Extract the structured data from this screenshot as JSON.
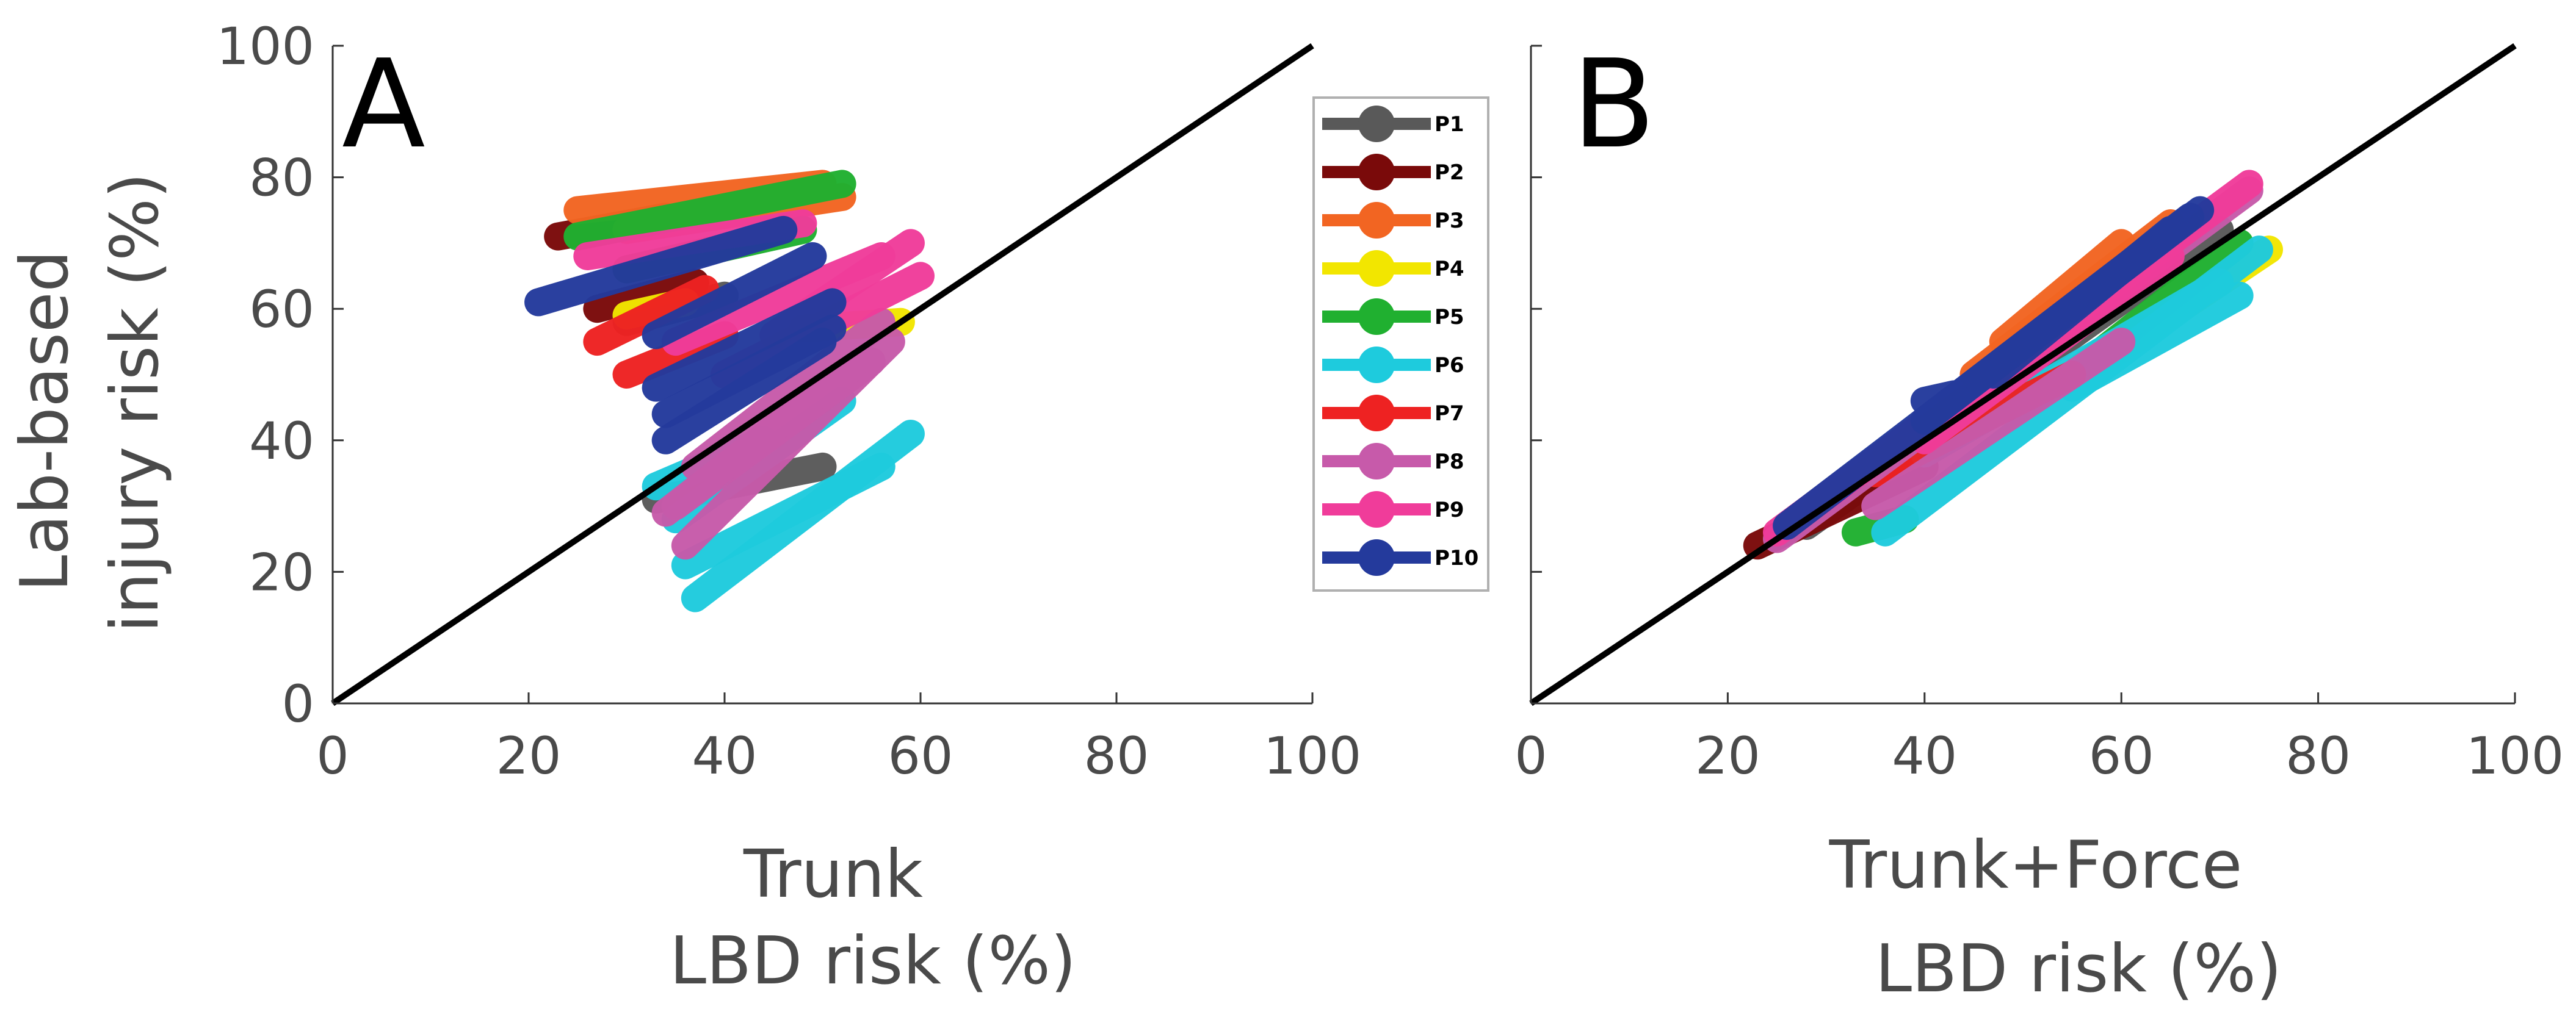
{
  "figure": {
    "ylabel_line1": "Lab-based",
    "ylabel_line2": "injury risk (%)"
  },
  "legend": {
    "entries": [
      {
        "label": "P1",
        "color": "#595959"
      },
      {
        "label": "P2",
        "color": "#7a0a0a"
      },
      {
        "label": "P3",
        "color": "#f26522"
      },
      {
        "label": "P4",
        "color": "#f2e600"
      },
      {
        "label": "P5",
        "color": "#20b030"
      },
      {
        "label": "P6",
        "color": "#1ecbdd"
      },
      {
        "label": "P7",
        "color": "#ee2222"
      },
      {
        "label": "P8",
        "color": "#c75aaa"
      },
      {
        "label": "P9",
        "color": "#f03c9a"
      },
      {
        "label": "P10",
        "color": "#243a9c"
      }
    ]
  },
  "chart_data": [
    {
      "type": "scatter",
      "panel": "A",
      "xlabel_line1": "Trunk",
      "xlabel_line2": "LBD risk (%)",
      "ylabel": "Lab-based injury risk (%)",
      "xlim": [
        0,
        100
      ],
      "ylim": [
        0,
        100
      ],
      "xticks": [
        "0",
        "20",
        "40",
        "80",
        "100"
      ],
      "xtick_values": [
        0,
        20,
        40,
        80,
        100
      ],
      "xticks_extra": [
        {
          "value": 60,
          "label": "60"
        }
      ],
      "yticks": [
        "0",
        "20",
        "40",
        "60",
        "80",
        "100"
      ],
      "ytick_values": [
        0,
        20,
        40,
        60,
        80,
        100
      ],
      "identity_line": [
        [
          0,
          0
        ],
        [
          100,
          100
        ]
      ],
      "series": [
        {
          "name": "P1",
          "color": "#595959",
          "bands": [
            [
              33,
              31,
              50,
              36
            ],
            [
              30,
              58,
              40,
              62
            ]
          ]
        },
        {
          "name": "P2",
          "color": "#7a0a0a",
          "bands": [
            [
              23,
              71,
              34,
              74
            ],
            [
              27,
              60,
              37,
              64
            ]
          ]
        },
        {
          "name": "P3",
          "color": "#f26522",
          "bands": [
            [
              25,
              75,
              50,
              79
            ],
            [
              30,
              72,
              52,
              77
            ]
          ]
        },
        {
          "name": "P4",
          "color": "#f2e600",
          "bands": [
            [
              48,
              57,
              58,
              58
            ],
            [
              30,
              59,
              36,
              61
            ]
          ]
        },
        {
          "name": "P5",
          "color": "#20b030",
          "bands": [
            [
              25,
              71,
              52,
              79
            ],
            [
              30,
              66,
              48,
              72
            ]
          ]
        },
        {
          "name": "P6",
          "color": "#1ecbdd",
          "bands": [
            [
              37,
              16,
              59,
              41
            ],
            [
              36,
              21,
              56,
              36
            ],
            [
              35,
              28,
              52,
              46
            ],
            [
              33,
              33,
              44,
              40
            ]
          ]
        },
        {
          "name": "P7",
          "color": "#ee2222",
          "bands": [
            [
              27,
              55,
              38,
              63
            ],
            [
              30,
              50,
              40,
              56
            ]
          ]
        },
        {
          "name": "P8",
          "color": "#c75aaa",
          "bands": [
            [
              36,
              24,
              57,
              55
            ],
            [
              35,
              30,
              55,
              52
            ],
            [
              37,
              36,
              56,
              58
            ],
            [
              34,
              29,
              53,
              51
            ]
          ]
        },
        {
          "name": "P9",
          "color": "#f03c9a",
          "bands": [
            [
              40,
              50,
              60,
              65
            ],
            [
              45,
              56,
              59,
              70
            ],
            [
              26,
              68,
              48,
              73
            ],
            [
              35,
              55,
              56,
              68
            ]
          ]
        },
        {
          "name": "P10",
          "color": "#243a9c",
          "bands": [
            [
              21,
              61,
              46,
              72
            ],
            [
              33,
              48,
              51,
              61
            ],
            [
              34,
              44,
              51,
              57
            ],
            [
              34,
              40,
              50,
              55
            ],
            [
              33,
              56,
              49,
              68
            ]
          ]
        }
      ]
    },
    {
      "type": "scatter",
      "panel": "B",
      "xlabel_line1": "Trunk+Force",
      "xlabel_line2": "LBD risk (%)",
      "ylabel": "Lab-based injury risk (%)",
      "xlim": [
        0,
        100
      ],
      "ylim": [
        0,
        100
      ],
      "xticks": [
        "0",
        "20",
        "40",
        "60",
        "80",
        "100"
      ],
      "xtick_values": [
        0,
        20,
        40,
        60,
        80,
        100
      ],
      "identity_line": [
        [
          0,
          0
        ],
        [
          100,
          100
        ]
      ],
      "series": [
        {
          "name": "P1",
          "color": "#595959",
          "bands": [
            [
              28,
              27,
              70,
              72
            ]
          ]
        },
        {
          "name": "P2",
          "color": "#7a0a0a",
          "bands": [
            [
              23,
              24,
              40,
              36
            ]
          ]
        },
        {
          "name": "P3",
          "color": "#f26522",
          "bands": [
            [
              45,
              50,
              65,
              73
            ],
            [
              48,
              55,
              60,
              70
            ]
          ]
        },
        {
          "name": "P4",
          "color": "#f2e600",
          "bands": [
            [
              58,
              52,
              75,
              69
            ]
          ]
        },
        {
          "name": "P5",
          "color": "#20b030",
          "bands": [
            [
              33,
              26,
              38,
              28
            ],
            [
              55,
              50,
              72,
              70
            ]
          ]
        },
        {
          "name": "P6",
          "color": "#1ecbdd",
          "bands": [
            [
              36,
              26,
              74,
              69
            ],
            [
              40,
              38,
              70,
              64
            ],
            [
              55,
              48,
              72,
              62
            ]
          ]
        },
        {
          "name": "P7",
          "color": "#ee2222",
          "bands": [
            [
              35,
              35,
              55,
              50
            ]
          ]
        },
        {
          "name": "P8",
          "color": "#c75aaa",
          "bands": [
            [
              25,
              25,
              73,
              78
            ],
            [
              35,
              30,
              60,
              55
            ]
          ]
        },
        {
          "name": "P9",
          "color": "#f03c9a",
          "bands": [
            [
              25,
              26,
              73,
              79
            ],
            [
              40,
              40,
              65,
              68
            ]
          ]
        },
        {
          "name": "P10",
          "color": "#243a9c",
          "bands": [
            [
              26,
              27,
              68,
              75
            ],
            [
              40,
              43,
              67,
              74
            ],
            [
              47,
              50,
              65,
              72
            ],
            [
              40,
              46,
              43,
              47
            ]
          ]
        }
      ]
    }
  ]
}
